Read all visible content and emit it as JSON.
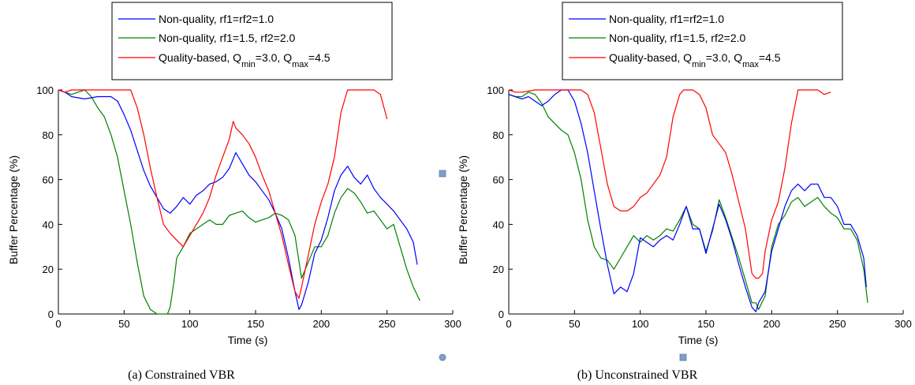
{
  "legend": {
    "entries": [
      {
        "label": "Non-quality, rf1=rf2=1.0",
        "color": "#0000ff"
      },
      {
        "label": "Non-quality, rf1=1.5, rf2=2.0",
        "color": "#008000"
      },
      {
        "label": "Quality-based, Q",
        "sub1": "min",
        "mid": "=3.0, Q",
        "sub2": "max",
        "tail": "=4.5",
        "color": "#ff0000"
      }
    ]
  },
  "chart_data": [
    {
      "type": "line",
      "caption": "(a)  Constrained VBR",
      "xlabel": "Time (s)",
      "ylabel": "Buffer Percentage (%)",
      "xlim": [
        0,
        300
      ],
      "ylim": [
        0,
        100
      ],
      "xticks": [
        "0",
        "50",
        "100",
        "150",
        "200",
        "250",
        "300"
      ],
      "yticks": [
        "0",
        "20",
        "40",
        "60",
        "80",
        "100"
      ],
      "grid": false,
      "legend_position": "top",
      "series": [
        {
          "name": "Non-quality, rf1=rf2=1.0",
          "color": "#0000ff",
          "x": [
            0,
            5,
            10,
            20,
            30,
            40,
            45,
            50,
            55,
            60,
            65,
            70,
            75,
            80,
            85,
            90,
            95,
            100,
            105,
            110,
            115,
            120,
            125,
            130,
            135,
            140,
            145,
            150,
            155,
            160,
            165,
            170,
            175,
            180,
            183,
            185,
            190,
            195,
            200,
            205,
            210,
            215,
            220,
            225,
            230,
            235,
            240,
            245,
            250,
            255,
            260,
            265,
            270,
            273
          ],
          "y": [
            100,
            99,
            97,
            96,
            97,
            97,
            95,
            89,
            82,
            73,
            64,
            57,
            52,
            47,
            45,
            48,
            52,
            49,
            53,
            55,
            58,
            59,
            61,
            65,
            72,
            67,
            62,
            59,
            55,
            51,
            45,
            38,
            25,
            10,
            2,
            4,
            14,
            27,
            33,
            43,
            55,
            62,
            66,
            61,
            58,
            62,
            56,
            52,
            49,
            46,
            42,
            38,
            32,
            22
          ]
        },
        {
          "name": "Non-quality, rf1=1.5, rf2=2.0",
          "color": "#008000",
          "x": [
            0,
            5,
            10,
            15,
            20,
            25,
            30,
            35,
            40,
            45,
            50,
            55,
            60,
            65,
            70,
            75,
            78,
            80,
            83,
            85,
            88,
            90,
            95,
            100,
            105,
            110,
            115,
            120,
            125,
            130,
            135,
            140,
            145,
            150,
            155,
            160,
            165,
            170,
            175,
            180,
            185,
            190,
            195,
            200,
            205,
            210,
            215,
            220,
            225,
            230,
            235,
            240,
            245,
            250,
            255,
            260,
            265,
            270,
            275
          ],
          "y": [
            100,
            99,
            98,
            99,
            100,
            97,
            92,
            88,
            80,
            70,
            55,
            40,
            23,
            8,
            2,
            0,
            0,
            0,
            0,
            3,
            15,
            25,
            30,
            36,
            38,
            40,
            42,
            40,
            40,
            44,
            45,
            46,
            43,
            41,
            42,
            43,
            45,
            44,
            42,
            35,
            16,
            23,
            30,
            30,
            35,
            45,
            52,
            56,
            54,
            50,
            45,
            46,
            42,
            38,
            40,
            30,
            20,
            12,
            6
          ]
        },
        {
          "name": "Quality-based, Qmin=3.0, Qmax=4.5",
          "color": "#ff0000",
          "x": [
            0,
            5,
            10,
            20,
            30,
            40,
            45,
            50,
            55,
            60,
            65,
            70,
            75,
            80,
            85,
            90,
            95,
            100,
            105,
            110,
            115,
            120,
            125,
            130,
            133,
            135,
            140,
            145,
            150,
            155,
            160,
            165,
            170,
            175,
            180,
            183,
            185,
            190,
            195,
            200,
            205,
            210,
            215,
            220,
            225,
            230,
            235,
            240,
            245,
            250
          ],
          "y": [
            100,
            99,
            100,
            100,
            100,
            100,
            100,
            100,
            100,
            92,
            80,
            65,
            52,
            40,
            36,
            33,
            30,
            35,
            40,
            45,
            52,
            62,
            70,
            78,
            86,
            83,
            80,
            76,
            70,
            62,
            55,
            45,
            35,
            22,
            10,
            7,
            12,
            26,
            40,
            50,
            58,
            70,
            90,
            100,
            100,
            100,
            100,
            100,
            98,
            87
          ]
        }
      ]
    },
    {
      "type": "line",
      "caption": "(b) Unconstrained VBR",
      "xlabel": "Time (s)",
      "ylabel": "Buffer Percentage (%)",
      "xlim": [
        0,
        300
      ],
      "ylim": [
        0,
        100
      ],
      "xticks": [
        "0",
        "50",
        "100",
        "150",
        "200",
        "250",
        "300"
      ],
      "yticks": [
        "0",
        "20",
        "40",
        "60",
        "80",
        "100"
      ],
      "grid": false,
      "legend_position": "top",
      "series": [
        {
          "name": "Non-quality, rf1=rf2=1.0",
          "color": "#0000ff",
          "x": [
            0,
            5,
            10,
            15,
            20,
            25,
            30,
            35,
            40,
            45,
            50,
            55,
            60,
            65,
            70,
            75,
            80,
            85,
            90,
            95,
            100,
            105,
            110,
            115,
            120,
            125,
            130,
            135,
            140,
            145,
            150,
            155,
            160,
            165,
            170,
            175,
            180,
            185,
            188,
            190,
            195,
            200,
            205,
            210,
            215,
            220,
            225,
            230,
            235,
            240,
            245,
            250,
            255,
            260,
            265,
            270,
            272
          ],
          "y": [
            98,
            97,
            96,
            97,
            95,
            93,
            95,
            98,
            100,
            100,
            95,
            85,
            72,
            55,
            38,
            22,
            9,
            12,
            10,
            18,
            34,
            32,
            30,
            33,
            35,
            33,
            40,
            48,
            38,
            38,
            27,
            38,
            49,
            42,
            33,
            22,
            12,
            3,
            1,
            5,
            10,
            28,
            38,
            48,
            55,
            58,
            55,
            58,
            58,
            52,
            52,
            48,
            40,
            40,
            35,
            25,
            12
          ]
        },
        {
          "name": "Non-quality, rf1=1.5, rf2=2.0",
          "color": "#008000",
          "x": [
            0,
            5,
            10,
            15,
            20,
            25,
            30,
            35,
            40,
            45,
            50,
            55,
            60,
            65,
            70,
            75,
            80,
            85,
            90,
            95,
            100,
            105,
            110,
            115,
            120,
            125,
            130,
            135,
            140,
            145,
            150,
            155,
            160,
            165,
            170,
            175,
            180,
            185,
            188,
            190,
            195,
            200,
            205,
            210,
            215,
            220,
            225,
            230,
            235,
            240,
            245,
            250,
            255,
            260,
            265,
            270,
            273
          ],
          "y": [
            98,
            97,
            97,
            99,
            98,
            94,
            88,
            85,
            82,
            80,
            72,
            60,
            42,
            30,
            25,
            24,
            20,
            25,
            30,
            35,
            32,
            35,
            33,
            35,
            38,
            37,
            42,
            48,
            40,
            38,
            28,
            37,
            51,
            43,
            34,
            25,
            15,
            5,
            5,
            2,
            8,
            30,
            40,
            44,
            50,
            52,
            48,
            50,
            52,
            48,
            45,
            43,
            38,
            38,
            33,
            20,
            5
          ]
        },
        {
          "name": "Quality-based, Qmin=3.0, Qmax=4.5",
          "color": "#ff0000",
          "x": [
            0,
            5,
            10,
            20,
            30,
            40,
            45,
            50,
            55,
            60,
            65,
            70,
            75,
            80,
            85,
            90,
            95,
            100,
            105,
            110,
            115,
            120,
            125,
            130,
            133,
            135,
            140,
            145,
            150,
            155,
            160,
            165,
            170,
            175,
            180,
            185,
            188,
            190,
            193,
            195,
            200,
            205,
            210,
            215,
            220,
            225,
            230,
            235,
            240,
            245
          ],
          "y": [
            100,
            99,
            99,
            100,
            100,
            100,
            100,
            100,
            100,
            98,
            90,
            74,
            58,
            48,
            46,
            46,
            48,
            52,
            54,
            58,
            62,
            70,
            88,
            98,
            100,
            100,
            100,
            98,
            92,
            80,
            76,
            72,
            62,
            50,
            38,
            18,
            16,
            16,
            18,
            28,
            42,
            50,
            65,
            85,
            100,
            100,
            100,
            100,
            98,
            99
          ]
        }
      ]
    }
  ]
}
